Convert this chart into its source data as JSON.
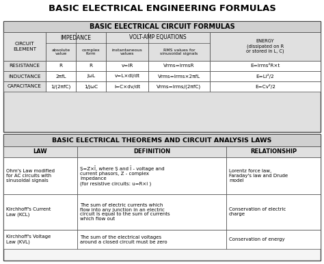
{
  "main_title": "BASIC ELECTRICAL ENGINEERING FORMULAS",
  "table1_title": "BASIC ELECTRICAL CIRCUIT FORMULAS",
  "table2_title": "BASIC ELECTRICAL THEOREMS AND CIRCUIT ANALYSIS LAWS",
  "bg_color": "#ffffff",
  "table1": {
    "rows": [
      [
        "RESISTANCE",
        "R",
        "R",
        "v=iR",
        "Vrms=IrmsR",
        "E=Irms²R×t"
      ],
      [
        "INDUCTANCE",
        "2πfL",
        "jωL",
        "v=L×di/dt",
        "Vrms=Irms×2πfL",
        "E=Li²/2"
      ],
      [
        "CAPACITANCE",
        "1/(2πfC)",
        "1/jωC",
        "i=C×dv/dt",
        "Vrms=Irms/(2πfC)",
        "E=Cv²/2"
      ]
    ]
  },
  "table2": {
    "col_headers": [
      "LAW",
      "DEFINITION",
      "RELATIONSHIP"
    ],
    "rows": [
      [
        "Ohm's Law modified\nfor AC circuits with\nsinusoidal signals",
        "Ṣ=Z×Ī, where Ṣ and Ī - voltage and\ncurrent phasors, Z - complex\nimpedance\n(for resistive circuits: u=R×i )",
        "Lorentz force law,\nFaraday's law and Drude\nmodel"
      ],
      [
        "Kirchhoff's Current\nLaw (KCL)",
        "The sum of electric currents which\nflow into any junction in an electric\ncircuit is equal to the sum of currents\nwhich flow out",
        "Conservation of electric\ncharge"
      ],
      [
        "Kirchhoff's Voltage\nLaw (KVL)",
        "The sum of the electrical voltages\naround a closed circuit must be zero",
        "Conservation of energy"
      ]
    ]
  }
}
